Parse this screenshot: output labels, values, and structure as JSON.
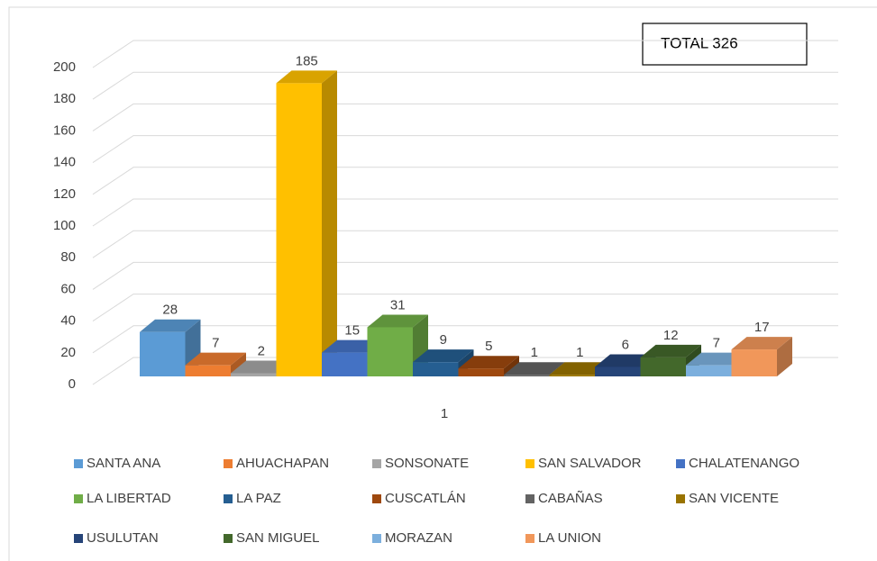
{
  "chart_data": {
    "type": "bar3d",
    "annotation": "TOTAL 326",
    "categories": [
      "1"
    ],
    "series": [
      {
        "name": "SANTA ANA",
        "color": "#5b9bd5",
        "values": [
          28
        ]
      },
      {
        "name": "AHUACHAPAN",
        "color": "#ed7d31",
        "values": [
          7
        ]
      },
      {
        "name": "SONSONATE",
        "color": "#a5a5a5",
        "values": [
          2
        ]
      },
      {
        "name": "SAN SALVADOR",
        "color": "#ffc000",
        "values": [
          185
        ]
      },
      {
        "name": "CHALATENANGO",
        "color": "#4472c4",
        "values": [
          15
        ]
      },
      {
        "name": "LA LIBERTAD",
        "color": "#70ad47",
        "values": [
          31
        ]
      },
      {
        "name": "LA PAZ",
        "color": "#255e91",
        "values": [
          9
        ]
      },
      {
        "name": "CUSCATLÁN",
        "color": "#9e480e",
        "values": [
          5
        ]
      },
      {
        "name": "CABAÑAS",
        "color": "#636363",
        "values": [
          1
        ]
      },
      {
        "name": "SAN VICENTE",
        "color": "#997300",
        "values": [
          1
        ]
      },
      {
        "name": "USULUTAN",
        "color": "#264478",
        "values": [
          6
        ]
      },
      {
        "name": "SAN MIGUEL",
        "color": "#43682b",
        "values": [
          12
        ]
      },
      {
        "name": "MORAZAN",
        "color": "#7cafdd",
        "values": [
          7
        ]
      },
      {
        "name": "LA UNION",
        "color": "#f1975a",
        "values": [
          17
        ]
      }
    ],
    "ylim": [
      0,
      200
    ],
    "yticks": [
      0,
      20,
      40,
      60,
      80,
      100,
      120,
      140,
      160,
      180,
      200
    ],
    "grid": true,
    "legend": "bottom"
  }
}
